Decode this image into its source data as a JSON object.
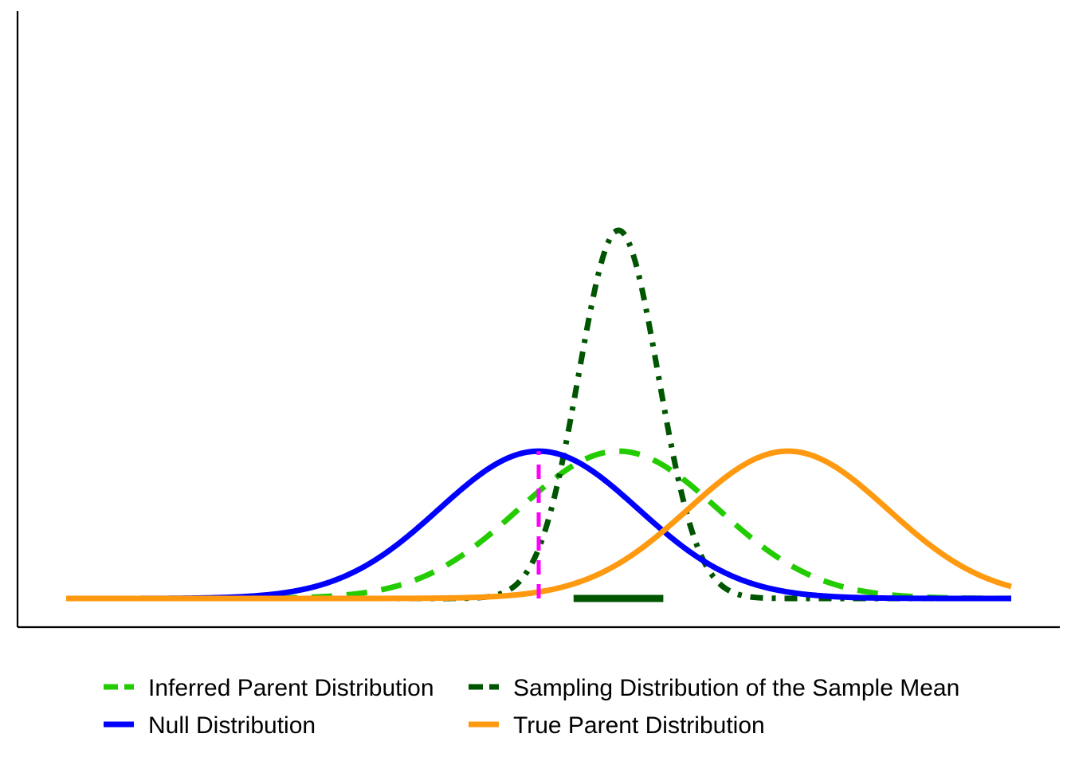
{
  "chart_data": {
    "type": "line",
    "title": "",
    "xlabel": "",
    "ylabel": "",
    "xlim": [
      -4.74,
      4.74
    ],
    "ylim": [
      0,
      1.5
    ],
    "grid": false,
    "legend_position": "bottom",
    "series": [
      {
        "name": "Inferred Parent Distribution",
        "kind": "normal",
        "mean": 0.8,
        "sd": 1.0,
        "color": "#22CC00",
        "style": "dashed"
      },
      {
        "name": "Sampling Distribution of the Sample Mean",
        "kind": "normal",
        "mean": 0.8,
        "sd": 0.4,
        "color": "#005500",
        "style": "dashdot"
      },
      {
        "name": "Null Distribution",
        "kind": "normal",
        "mean": 0.0,
        "sd": 1.0,
        "color": "#0000FF",
        "style": "solid"
      },
      {
        "name": "True Parent Distribution",
        "kind": "normal",
        "mean": 2.5,
        "sd": 1.0,
        "color": "#FF9910",
        "style": "solid"
      }
    ],
    "annotations": [
      {
        "kind": "vertical-segment",
        "x": 0.0,
        "y_from": 0,
        "y_to": 0.399,
        "color": "#FF00FF",
        "style": "dashed"
      },
      {
        "kind": "horizontal-segment",
        "x_from": 0.35,
        "x_to": 1.25,
        "y": 0,
        "color": "#005500",
        "style": "solid"
      }
    ],
    "legend": [
      {
        "label": "Inferred Parent Distribution",
        "color": "#22CC00"
      },
      {
        "label": "Sampling Distribution of the Sample Mean",
        "color": "#005500"
      },
      {
        "label": "Null Distribution",
        "color": "#0000FF"
      },
      {
        "label": "True Parent Distribution",
        "color": "#FF9910"
      }
    ]
  }
}
